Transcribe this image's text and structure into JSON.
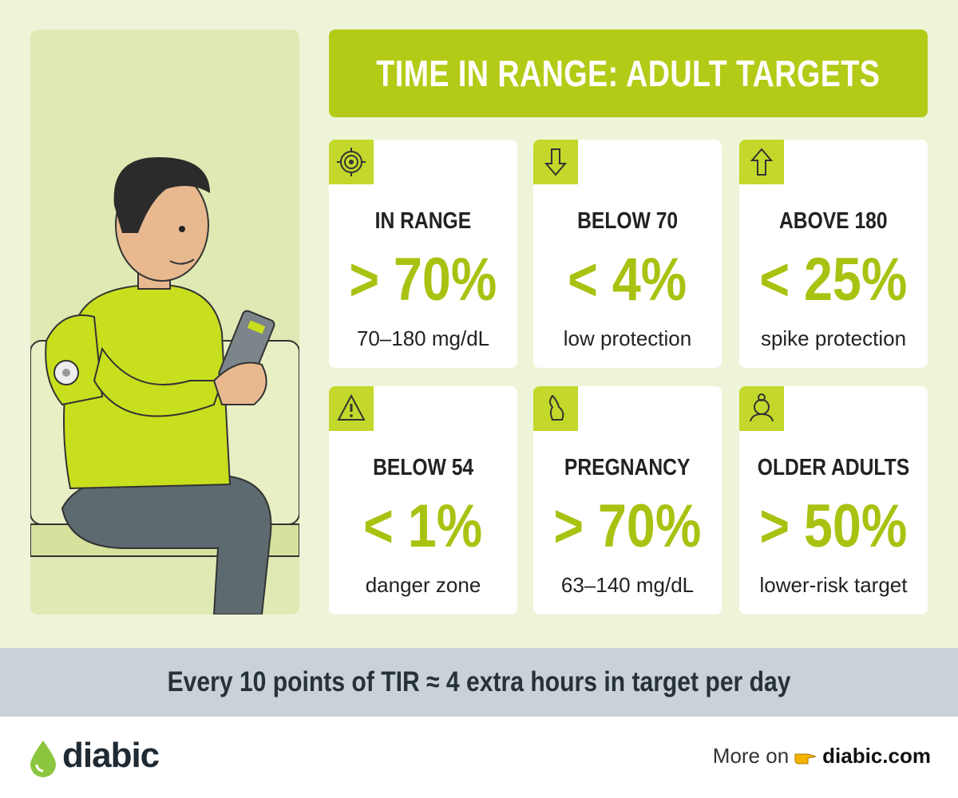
{
  "header": {
    "title": "TIME IN RANGE: ADULT TARGETS"
  },
  "cards": [
    {
      "label": "IN RANGE",
      "value": "> 70%",
      "note": "70–180 mg/dL"
    },
    {
      "label": "BELOW 70",
      "value": "< 4%",
      "note": "low protection"
    },
    {
      "label": "ABOVE 180",
      "value": "< 25%",
      "note": "spike protection"
    },
    {
      "label": "BELOW 54",
      "value": "< 1%",
      "note": "danger zone"
    },
    {
      "label": "PREGNANCY",
      "value": "> 70%",
      "note": "63–140 mg/dL"
    },
    {
      "label": "OLDER ADULTS",
      "value": "> 50%",
      "note": "lower-risk target"
    }
  ],
  "banner": "Every 10 points of TIR ≈ 4 extra hours in target per day",
  "footer": {
    "brand": "diabic",
    "more": "More on",
    "link": "diabic.com"
  }
}
